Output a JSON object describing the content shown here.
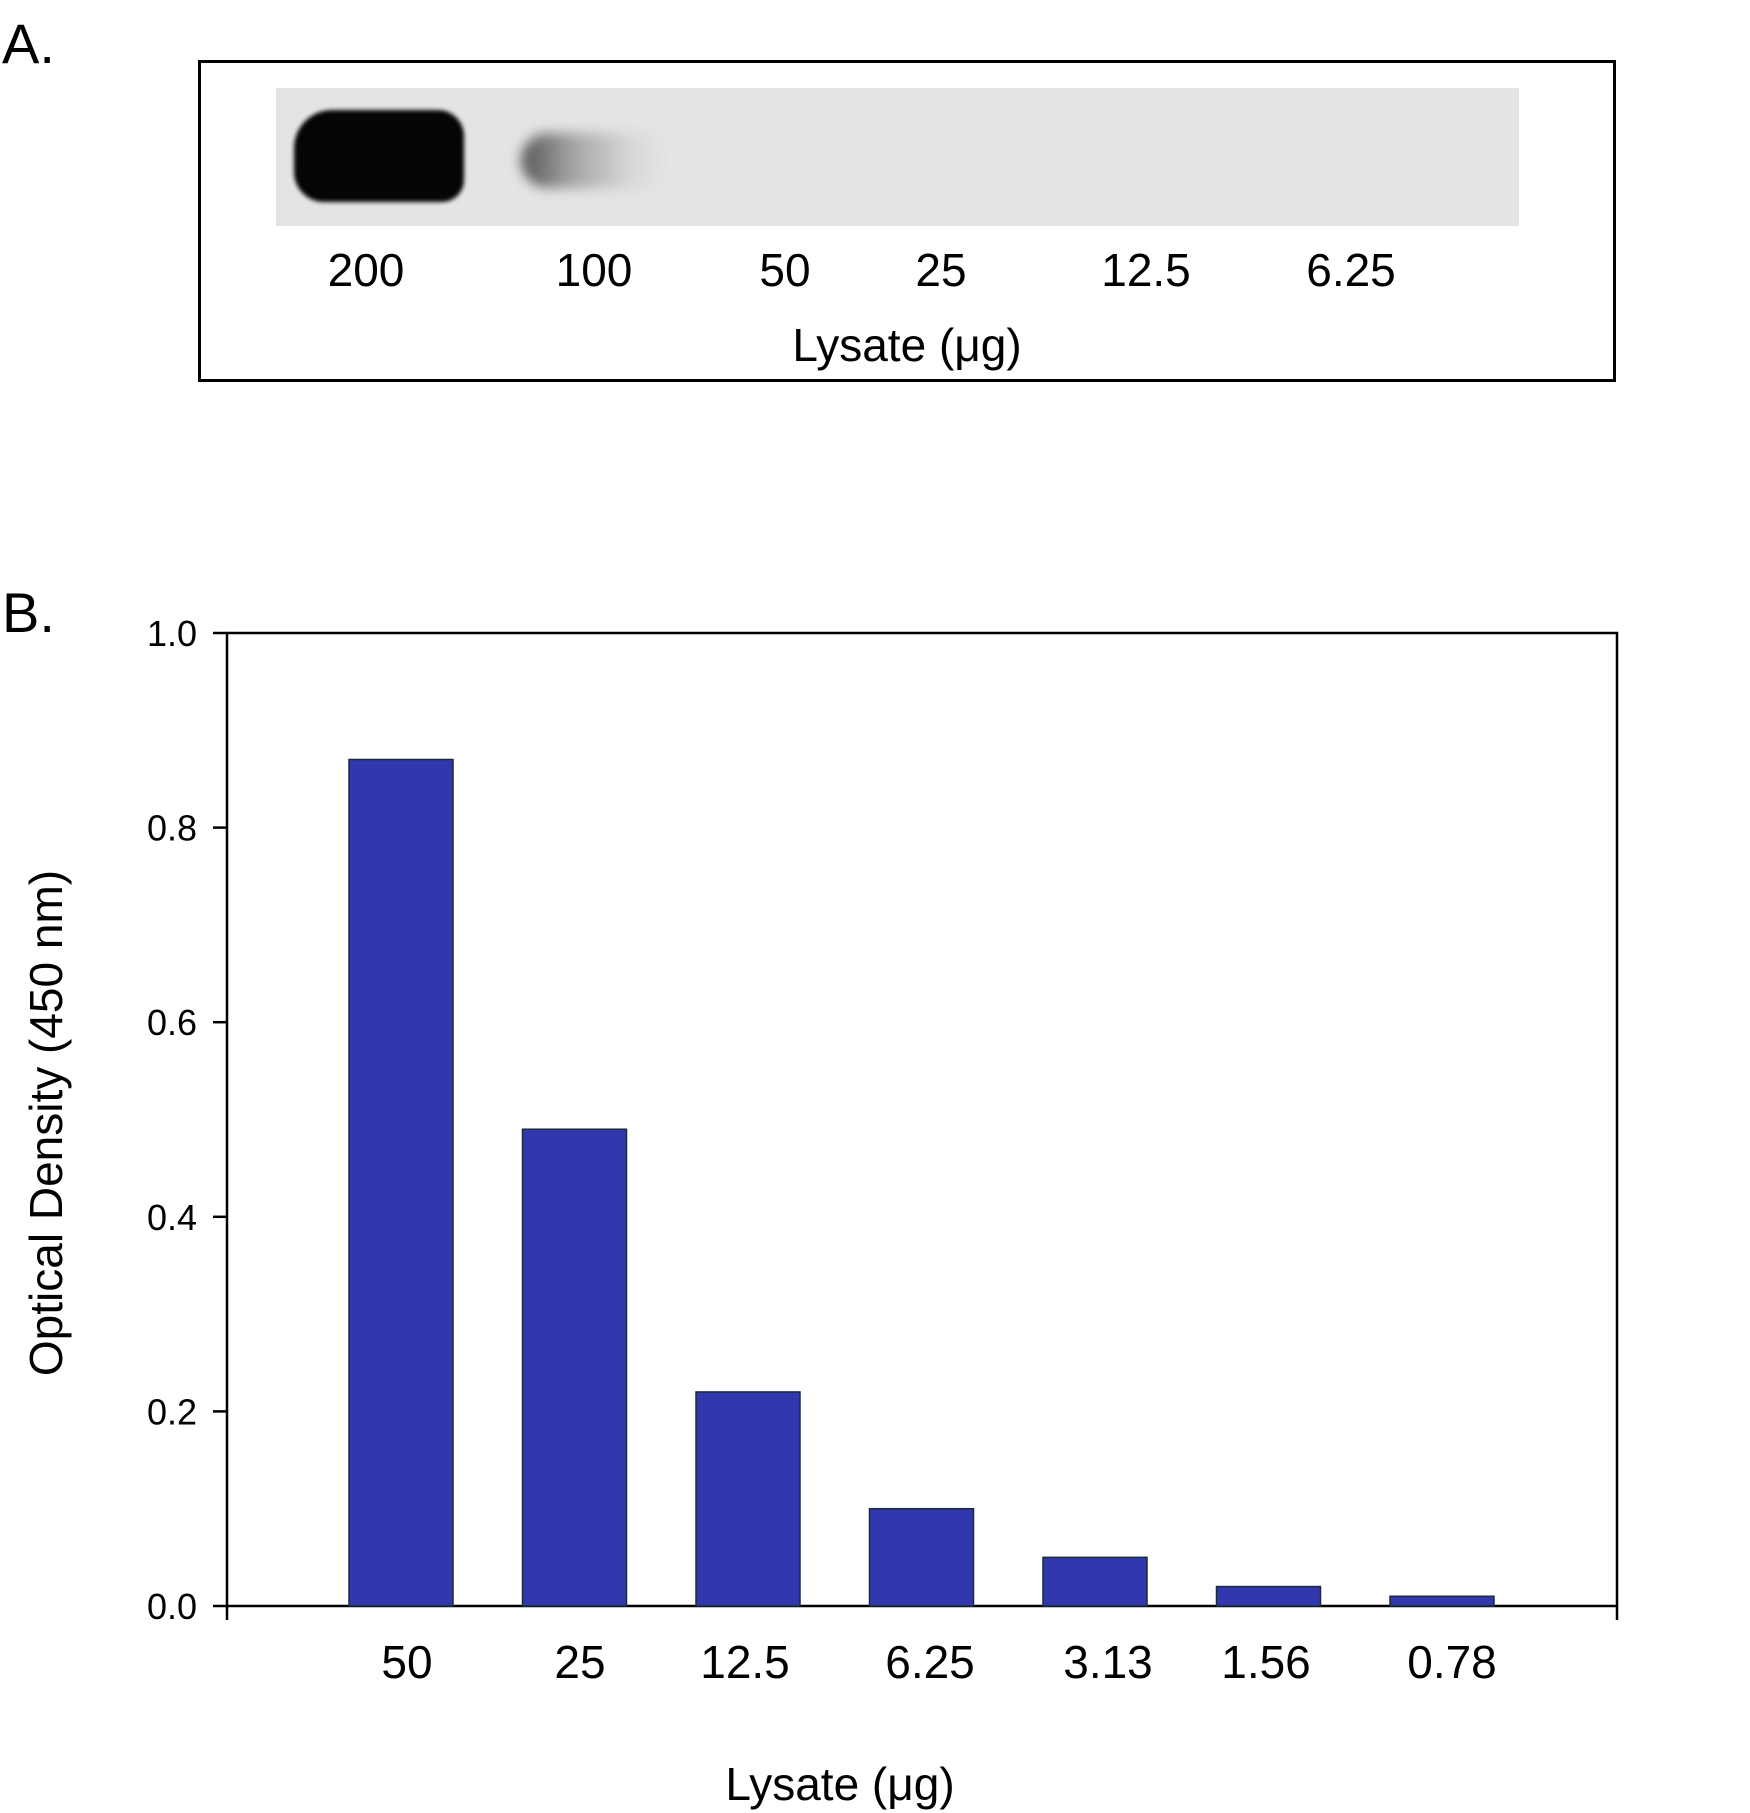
{
  "panel_a": {
    "letter": "A.",
    "lanes": [
      "200",
      "100",
      "50",
      "25",
      "12.5",
      "6.25"
    ],
    "xlabel": "Lysate (μg)"
  },
  "panel_b": {
    "letter": "B."
  },
  "chart_data": {
    "type": "bar",
    "categories": [
      "50",
      "25",
      "12.5",
      "6.25",
      "3.13",
      "1.56",
      "0.78"
    ],
    "values": [
      0.87,
      0.49,
      0.22,
      0.1,
      0.05,
      0.02,
      0.01
    ],
    "title": "",
    "xlabel": "Lysate (μg)",
    "ylabel": "Optical Density (450 nm)",
    "ylim": [
      0,
      1.0
    ],
    "yticks": [
      "0.0",
      "0.2",
      "0.4",
      "0.6",
      "0.8",
      "1.0"
    ],
    "bar_color": "#3138ad",
    "grid": false
  }
}
